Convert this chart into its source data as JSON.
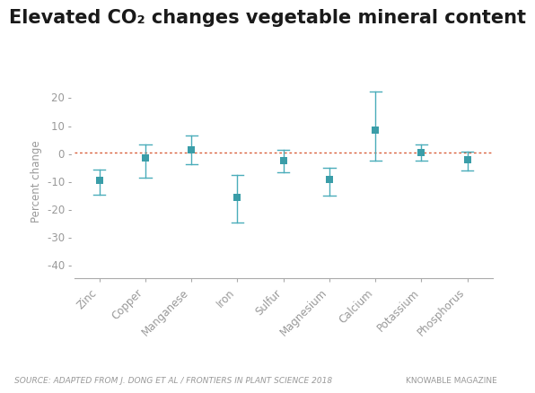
{
  "title": "Elevated CO₂ changes vegetable mineral content",
  "ylabel": "Percent change",
  "categories": [
    "Zinc",
    "Copper",
    "Manganese",
    "Iron",
    "Sulfur",
    "Magnesium",
    "Calcium",
    "Potassium",
    "Phosphorus"
  ],
  "values": [
    -10,
    -2,
    1,
    -16,
    -3,
    -9.5,
    8,
    0,
    -2.5
  ],
  "err_low": [
    5,
    7,
    5,
    9,
    4,
    6,
    11,
    3,
    4
  ],
  "err_high": [
    4,
    5,
    5,
    8,
    4,
    4,
    14,
    3,
    3
  ],
  "marker_color": "#3a9da8",
  "line_color": "#4aadba",
  "ref_line_color": "#d95f3b",
  "ylim": [
    -45,
    25
  ],
  "yticks": [
    20,
    10,
    0,
    -10,
    -20,
    -30,
    -40
  ],
  "background_color": "#ffffff",
  "axis_color": "#aaaaaa",
  "tick_label_color": "#999999",
  "ylabel_color": "#999999",
  "source_text": "SOURCE: ADAPTED FROM J. DONG ET AL / FRONTIERS IN PLANT SCIENCE 2018",
  "credit_text": "KNOWABLE MAGAZINE",
  "source_fontsize": 6.5,
  "title_fontsize": 15
}
